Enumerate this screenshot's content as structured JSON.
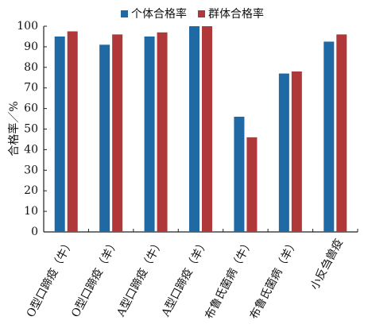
{
  "chart_data": {
    "type": "bar",
    "y_label": "合格率／%",
    "categories": [
      "O型口蹄疫（牛）",
      "O型口蹄疫（羊）",
      "A型口蹄疫（牛）",
      "A型口蹄疫（羊）",
      "布鲁氏菌病（牛）",
      "布鲁氏菌病（羊）",
      "小反刍兽疫"
    ],
    "series": [
      {
        "name": "个体合格率",
        "color": "#1f6aa5",
        "values": [
          95,
          91,
          95,
          100,
          56,
          77,
          92.5
        ]
      },
      {
        "name": "群体合格率",
        "color": "#b03838",
        "values": [
          97.5,
          96,
          97,
          100,
          46,
          78,
          96
        ]
      }
    ],
    "ylim": [
      0,
      100
    ],
    "yticks": [
      0,
      10,
      20,
      30,
      40,
      50,
      60,
      70,
      80,
      90,
      100
    ],
    "legend": "top"
  }
}
